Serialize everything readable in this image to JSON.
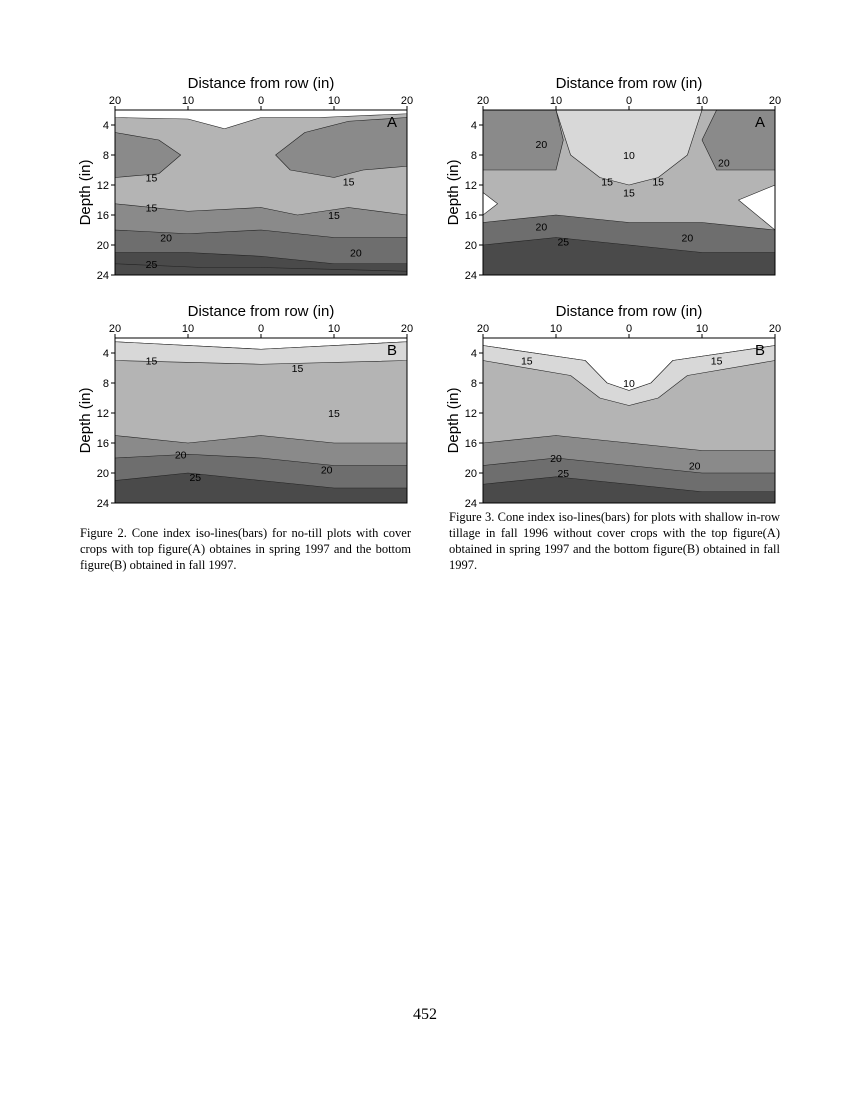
{
  "figures": [
    {
      "caption": "Figure 2. Cone index iso-lines(bars) for no-till plots with cover crops with top figure(A) obtaines in spring 1997 and the bottom figure(B) obtained in fall 1997."
    },
    {
      "caption": "Figure 3. Cone index iso-lines(bars) for plots with shallow in-row tillage in fall 1996 without cover crops with the top figure(A) obtained in spring 1997 and the bottom figure(B) obtained in fall 1997."
    }
  ],
  "page_number": "452",
  "colors": {
    "level_under_10": "#ffffff",
    "level_10_15": "#d8d8d8",
    "level_15_20": "#b4b4b4",
    "level_high": "#8a8a8a",
    "level_20_25": "#6e6e6e",
    "level_25_plus": "#4a4a4a",
    "contour_line": "#222222"
  },
  "chart_data": [
    {
      "type": "heatmap",
      "panel": "A",
      "title": "Distance from row (in)",
      "ylabel": "Depth (in)",
      "x_ticks": [
        "20",
        "10",
        "0",
        "10",
        "20"
      ],
      "y_ticks": [
        "4",
        "8",
        "12",
        "16",
        "20",
        "24"
      ],
      "xlim": [
        -20,
        20
      ],
      "ylim": [
        24,
        2
      ],
      "contour_labels": [
        {
          "text": "15",
          "x": -15,
          "y": 11
        },
        {
          "text": "15",
          "x": 12,
          "y": 11.5
        },
        {
          "text": "15",
          "x": -15,
          "y": 15
        },
        {
          "text": "15",
          "x": 10,
          "y": 16
        },
        {
          "text": "20",
          "x": -13,
          "y": 19
        },
        {
          "text": "20",
          "x": 13,
          "y": 21
        },
        {
          "text": "25",
          "x": -15,
          "y": 22.5
        }
      ],
      "regions": [
        {
          "level": "15-20",
          "outline": [
            [
              -20,
              2
            ],
            [
              -16,
              2.5
            ],
            [
              -10,
              3
            ],
            [
              -5,
              4
            ],
            [
              -2,
              3.5
            ],
            [
              2,
              3
            ],
            [
              8,
              2.5
            ],
            [
              20,
              2
            ]
          ],
          "fill": "base"
        },
        {
          "level": "under 10",
          "outline": [
            [
              -20,
              2
            ],
            [
              20,
              2
            ],
            [
              20,
              2.5
            ],
            [
              8,
              3
            ],
            [
              0,
              3
            ],
            [
              -5,
              4.5
            ],
            [
              -10,
              3.2
            ],
            [
              -20,
              3
            ]
          ]
        },
        {
          "level": "high",
          "outline": [
            [
              -20,
              5
            ],
            [
              -14,
              6
            ],
            [
              -11,
              8
            ],
            [
              -14,
              10.5
            ],
            [
              -20,
              11
            ]
          ]
        },
        {
          "level": "high",
          "outline": [
            [
              20,
              3
            ],
            [
              12,
              3.5
            ],
            [
              6,
              5
            ],
            [
              2,
              8
            ],
            [
              4,
              10
            ],
            [
              10,
              11
            ],
            [
              14,
              10
            ],
            [
              20,
              9.5
            ]
          ]
        },
        {
          "level": "high",
          "outline": [
            [
              -20,
              14.5
            ],
            [
              -10,
              15.5
            ],
            [
              0,
              15
            ],
            [
              5,
              16
            ],
            [
              12,
              15
            ],
            [
              20,
              16
            ],
            [
              20,
              24
            ],
            [
              -20,
              24
            ]
          ]
        },
        {
          "level": "20-25",
          "outline": [
            [
              -20,
              18
            ],
            [
              -10,
              18.5
            ],
            [
              0,
              18
            ],
            [
              10,
              19
            ],
            [
              20,
              19
            ],
            [
              20,
              24
            ],
            [
              -20,
              24
            ]
          ]
        },
        {
          "level": "25+",
          "outline": [
            [
              -20,
              21
            ],
            [
              -10,
              21
            ],
            [
              0,
              21.5
            ],
            [
              10,
              22.5
            ],
            [
              20,
              22.5
            ],
            [
              20,
              24
            ],
            [
              -20,
              24
            ]
          ]
        },
        {
          "level": "25+",
          "outline": [
            [
              -20,
              22.5
            ],
            [
              -8,
              23
            ],
            [
              0,
              23
            ],
            [
              20,
              23.5
            ],
            [
              20,
              24
            ],
            [
              -20,
              24
            ]
          ]
        }
      ]
    },
    {
      "type": "heatmap",
      "panel": "A",
      "title": "Distance from row (in)",
      "ylabel": "Depth (in)",
      "x_ticks": [
        "20",
        "10",
        "0",
        "10",
        "20"
      ],
      "y_ticks": [
        "4",
        "8",
        "12",
        "16",
        "20",
        "24"
      ],
      "xlim": [
        -20,
        20
      ],
      "ylim": [
        24,
        2
      ],
      "contour_labels": [
        {
          "text": "20",
          "x": -12,
          "y": 6.5
        },
        {
          "text": "10",
          "x": 0,
          "y": 8
        },
        {
          "text": "20",
          "x": 13,
          "y": 9
        },
        {
          "text": "15",
          "x": -3,
          "y": 11.5
        },
        {
          "text": "15",
          "x": 4,
          "y": 11.5
        },
        {
          "text": "15",
          "x": 0,
          "y": 13
        },
        {
          "text": "20",
          "x": -12,
          "y": 17.5
        },
        {
          "text": "20",
          "x": 8,
          "y": 19
        },
        {
          "text": "25",
          "x": -9,
          "y": 19.5
        }
      ],
      "regions": [
        {
          "level": "15-20",
          "outline": [],
          "fill": "base"
        },
        {
          "level": "under 10",
          "outline": [
            [
              -8,
              2
            ],
            [
              8,
              2
            ],
            [
              6,
              6
            ],
            [
              3,
              9
            ],
            [
              0,
              10
            ],
            [
              -3,
              9
            ],
            [
              -6,
              6
            ]
          ]
        },
        {
          "level": "10-15",
          "outline": [
            [
              -10,
              2
            ],
            [
              10,
              2
            ],
            [
              8,
              8
            ],
            [
              4,
              11
            ],
            [
              0,
              12
            ],
            [
              -4,
              11
            ],
            [
              -8,
              8
            ]
          ]
        },
        {
          "level": "high",
          "outline": [
            [
              -20,
              2
            ],
            [
              -10,
              2
            ],
            [
              -9,
              6
            ],
            [
              -10,
              10
            ],
            [
              -20,
              10
            ]
          ]
        },
        {
          "level": "high",
          "outline": [
            [
              20,
              2
            ],
            [
              12,
              2
            ],
            [
              10,
              6
            ],
            [
              12,
              10
            ],
            [
              20,
              10
            ]
          ]
        },
        {
          "level": "under 10",
          "outline": [
            [
              -20,
              13
            ],
            [
              -18,
              14.5
            ],
            [
              -20,
              16
            ]
          ]
        },
        {
          "level": "under 10",
          "outline": [
            [
              20,
              12
            ],
            [
              15,
              14
            ],
            [
              20,
              18
            ]
          ]
        },
        {
          "level": "20-25",
          "outline": [
            [
              -20,
              17
            ],
            [
              -10,
              16
            ],
            [
              0,
              17
            ],
            [
              10,
              17
            ],
            [
              20,
              18
            ],
            [
              20,
              24
            ],
            [
              -20,
              24
            ]
          ]
        },
        {
          "level": "25+",
          "outline": [
            [
              -20,
              20
            ],
            [
              -10,
              19
            ],
            [
              0,
              20
            ],
            [
              10,
              21
            ],
            [
              20,
              21
            ],
            [
              20,
              24
            ],
            [
              -20,
              24
            ]
          ]
        }
      ]
    },
    {
      "type": "heatmap",
      "panel": "B",
      "title": "Distance from row (in)",
      "ylabel": "Depth (in)",
      "x_ticks": [
        "20",
        "10",
        "0",
        "10",
        "20"
      ],
      "y_ticks": [
        "4",
        "8",
        "12",
        "16",
        "20",
        "24"
      ],
      "xlim": [
        -20,
        20
      ],
      "ylim": [
        24,
        2
      ],
      "contour_labels": [
        {
          "text": "15",
          "x": -15,
          "y": 5
        },
        {
          "text": "15",
          "x": 5,
          "y": 6
        },
        {
          "text": "15",
          "x": 10,
          "y": 12
        },
        {
          "text": "20",
          "x": -11,
          "y": 17.5
        },
        {
          "text": "20",
          "x": 9,
          "y": 19.5
        },
        {
          "text": "25",
          "x": -9,
          "y": 20.5
        }
      ],
      "regions": [
        {
          "level": "15-20",
          "outline": [],
          "fill": "base"
        },
        {
          "level": "under 10",
          "outline": [
            [
              -20,
              2
            ],
            [
              20,
              2
            ],
            [
              20,
              2.5
            ],
            [
              0,
              3.5
            ],
            [
              -20,
              2.5
            ]
          ]
        },
        {
          "level": "10-15",
          "outline": [
            [
              -20,
              2.5
            ],
            [
              0,
              3.5
            ],
            [
              20,
              2.5
            ],
            [
              20,
              5
            ],
            [
              0,
              5.5
            ],
            [
              -20,
              5
            ]
          ]
        },
        {
          "level": "high",
          "outline": [
            [
              -20,
              15
            ],
            [
              -10,
              16
            ],
            [
              0,
              15
            ],
            [
              10,
              16
            ],
            [
              20,
              16
            ],
            [
              20,
              24
            ],
            [
              -20,
              24
            ]
          ]
        },
        {
          "level": "20-25",
          "outline": [
            [
              -20,
              18
            ],
            [
              -10,
              17.5
            ],
            [
              0,
              18
            ],
            [
              10,
              19
            ],
            [
              20,
              19
            ],
            [
              20,
              24
            ],
            [
              -20,
              24
            ]
          ]
        },
        {
          "level": "25+",
          "outline": [
            [
              -20,
              21
            ],
            [
              -10,
              20
            ],
            [
              0,
              21
            ],
            [
              10,
              22
            ],
            [
              20,
              22
            ],
            [
              20,
              24
            ],
            [
              -20,
              24
            ]
          ]
        }
      ]
    },
    {
      "type": "heatmap",
      "panel": "B",
      "title": "Distance from row (in)",
      "ylabel": "Depth (in)",
      "x_ticks": [
        "20",
        "10",
        "0",
        "10",
        "20"
      ],
      "y_ticks": [
        "4",
        "8",
        "12",
        "16",
        "20",
        "24"
      ],
      "xlim": [
        -20,
        20
      ],
      "ylim": [
        24,
        2
      ],
      "contour_labels": [
        {
          "text": "15",
          "x": -14,
          "y": 5
        },
        {
          "text": "15",
          "x": 12,
          "y": 5
        },
        {
          "text": "10",
          "x": 0,
          "y": 8
        },
        {
          "text": "20",
          "x": -10,
          "y": 18
        },
        {
          "text": "20",
          "x": 9,
          "y": 19
        },
        {
          "text": "25",
          "x": -9,
          "y": 20
        }
      ],
      "regions": [
        {
          "level": "15-20",
          "outline": [],
          "fill": "base"
        },
        {
          "level": "under 10",
          "outline": [
            [
              -20,
              2
            ],
            [
              20,
              2
            ],
            [
              20,
              3
            ],
            [
              6,
              5
            ],
            [
              3,
              8
            ],
            [
              0,
              9
            ],
            [
              -3,
              8
            ],
            [
              -6,
              5
            ],
            [
              -20,
              3
            ]
          ]
        },
        {
          "level": "10-15",
          "outline": [
            [
              -20,
              3
            ],
            [
              -6,
              5
            ],
            [
              -3,
              8
            ],
            [
              0,
              9
            ],
            [
              3,
              8
            ],
            [
              6,
              5
            ],
            [
              20,
              3
            ],
            [
              20,
              5
            ],
            [
              8,
              7
            ],
            [
              4,
              10
            ],
            [
              0,
              11
            ],
            [
              -4,
              10
            ],
            [
              -8,
              7
            ],
            [
              -20,
              5
            ]
          ]
        },
        {
          "level": "high",
          "outline": [
            [
              -20,
              16
            ],
            [
              -10,
              15
            ],
            [
              0,
              16
            ],
            [
              10,
              17
            ],
            [
              20,
              17
            ],
            [
              20,
              24
            ],
            [
              -20,
              24
            ]
          ]
        },
        {
          "level": "20-25",
          "outline": [
            [
              -20,
              19
            ],
            [
              -10,
              18
            ],
            [
              0,
              19
            ],
            [
              10,
              20
            ],
            [
              20,
              20
            ],
            [
              20,
              24
            ],
            [
              -20,
              24
            ]
          ]
        },
        {
          "level": "25+",
          "outline": [
            [
              -20,
              21.5
            ],
            [
              -10,
              20.5
            ],
            [
              0,
              21.5
            ],
            [
              10,
              22.5
            ],
            [
              20,
              22.5
            ],
            [
              20,
              24
            ],
            [
              -20,
              24
            ]
          ]
        }
      ]
    }
  ]
}
